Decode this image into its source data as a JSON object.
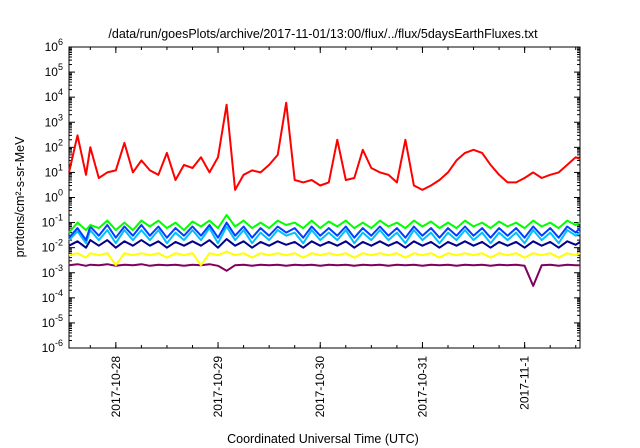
{
  "chart_data": {
    "type": "line",
    "title": "/data/run/goesPlots/archive/2017-11-01/13:00/flux/../flux/5daysEarthFluxes.txt",
    "xlabel": "Coordinated Universal Time (UTC)",
    "ylabel": "protons/cm²-s-sr-MeV",
    "yscale": "log",
    "ylim": [
      1e-06,
      1000000.0
    ],
    "xlim": [
      "2017-10-27 13:00",
      "2017-11-01 13:00"
    ],
    "xticks": [
      "2017-10-28",
      "2017-10-29",
      "2017-10-30",
      "2017-10-31",
      "2017-11-1"
    ],
    "yticks": [
      {
        "base": "10",
        "exp": "6"
      },
      {
        "base": "10",
        "exp": "5"
      },
      {
        "base": "10",
        "exp": "4"
      },
      {
        "base": "10",
        "exp": "3"
      },
      {
        "base": "10",
        "exp": "2"
      },
      {
        "base": "10",
        "exp": "1"
      },
      {
        "base": "10",
        "exp": "0"
      },
      {
        "base": "10",
        "exp": "-1"
      },
      {
        "base": "10",
        "exp": "-2"
      },
      {
        "base": "10",
        "exp": "-3"
      },
      {
        "base": "10",
        "exp": "-4"
      },
      {
        "base": "10",
        "exp": "-5"
      },
      {
        "base": "10",
        "exp": "-6"
      }
    ],
    "grid": false,
    "legend": "none",
    "x_hours": [
      0,
      2,
      4,
      5,
      7,
      9,
      11,
      13,
      15,
      17,
      19,
      21,
      23,
      25,
      27,
      29,
      31,
      33,
      35,
      37,
      39,
      41,
      43,
      45,
      47,
      49,
      51,
      53,
      55,
      57,
      59,
      61,
      63,
      65,
      67,
      69,
      71,
      73,
      75,
      77,
      79,
      81,
      83,
      85,
      87,
      89,
      91,
      93,
      95,
      97,
      99,
      101,
      103,
      105,
      107,
      109,
      111,
      113,
      115,
      117,
      119,
      120
    ],
    "series": [
      {
        "color": "#ff0000",
        "values": [
          10,
          300,
          8,
          100,
          6,
          10,
          12,
          150,
          10,
          30,
          12,
          8,
          60,
          5,
          20,
          15,
          40,
          10,
          40,
          5000,
          2,
          8,
          12,
          10,
          20,
          50,
          6000,
          5,
          4,
          5,
          3,
          4,
          200,
          5,
          6,
          80,
          15,
          10,
          8,
          4,
          200,
          3,
          2,
          3,
          5,
          10,
          30,
          60,
          80,
          60,
          20,
          8,
          4,
          4,
          6,
          10,
          6,
          8,
          10,
          20,
          40,
          35
        ]
      },
      {
        "color": "#00ff00",
        "values": [
          0.04,
          0.1,
          0.05,
          0.08,
          0.06,
          0.12,
          0.05,
          0.1,
          0.05,
          0.12,
          0.07,
          0.12,
          0.06,
          0.1,
          0.05,
          0.11,
          0.07,
          0.12,
          0.06,
          0.2,
          0.07,
          0.12,
          0.06,
          0.1,
          0.06,
          0.12,
          0.08,
          0.1,
          0.06,
          0.12,
          0.06,
          0.11,
          0.07,
          0.12,
          0.06,
          0.1,
          0.06,
          0.12,
          0.07,
          0.1,
          0.06,
          0.12,
          0.07,
          0.11,
          0.06,
          0.1,
          0.06,
          0.12,
          0.07,
          0.1,
          0.06,
          0.11,
          0.07,
          0.1,
          0.06,
          0.12,
          0.07,
          0.1,
          0.06,
          0.12,
          0.08,
          0.1
        ]
      },
      {
        "color": "#00bfff",
        "values": [
          0.02,
          0.045,
          0.015,
          0.05,
          0.02,
          0.05,
          0.015,
          0.05,
          0.02,
          0.05,
          0.02,
          0.05,
          0.015,
          0.04,
          0.02,
          0.05,
          0.02,
          0.06,
          0.015,
          0.07,
          0.02,
          0.05,
          0.015,
          0.04,
          0.02,
          0.05,
          0.03,
          0.04,
          0.015,
          0.05,
          0.02,
          0.04,
          0.02,
          0.05,
          0.015,
          0.04,
          0.02,
          0.05,
          0.02,
          0.04,
          0.015,
          0.05,
          0.02,
          0.04,
          0.015,
          0.04,
          0.02,
          0.05,
          0.02,
          0.04,
          0.015,
          0.04,
          0.02,
          0.04,
          0.015,
          0.05,
          0.02,
          0.04,
          0.015,
          0.05,
          0.03,
          0.04
        ]
      },
      {
        "color": "#0040ff",
        "values": [
          0.025,
          0.06,
          0.02,
          0.07,
          0.03,
          0.08,
          0.025,
          0.07,
          0.03,
          0.08,
          0.03,
          0.07,
          0.025,
          0.06,
          0.03,
          0.07,
          0.03,
          0.08,
          0.025,
          0.1,
          0.03,
          0.07,
          0.025,
          0.06,
          0.03,
          0.07,
          0.04,
          0.06,
          0.025,
          0.07,
          0.03,
          0.06,
          0.03,
          0.07,
          0.025,
          0.06,
          0.03,
          0.07,
          0.03,
          0.06,
          0.025,
          0.07,
          0.03,
          0.06,
          0.025,
          0.06,
          0.03,
          0.07,
          0.03,
          0.06,
          0.025,
          0.06,
          0.03,
          0.06,
          0.025,
          0.07,
          0.03,
          0.06,
          0.025,
          0.07,
          0.04,
          0.06
        ]
      },
      {
        "color": "#00008b",
        "values": [
          0.012,
          0.018,
          0.01,
          0.02,
          0.012,
          0.02,
          0.01,
          0.018,
          0.012,
          0.02,
          0.012,
          0.018,
          0.01,
          0.017,
          0.012,
          0.018,
          0.012,
          0.02,
          0.01,
          0.022,
          0.012,
          0.018,
          0.01,
          0.017,
          0.012,
          0.018,
          0.013,
          0.017,
          0.01,
          0.018,
          0.012,
          0.017,
          0.012,
          0.018,
          0.01,
          0.017,
          0.012,
          0.018,
          0.012,
          0.017,
          0.01,
          0.018,
          0.012,
          0.017,
          0.01,
          0.017,
          0.012,
          0.018,
          0.012,
          0.017,
          0.01,
          0.017,
          0.012,
          0.017,
          0.01,
          0.018,
          0.012,
          0.017,
          0.01,
          0.018,
          0.013,
          0.017
        ]
      },
      {
        "color": "#ffff00",
        "values": [
          0.005,
          0.006,
          0.004,
          0.006,
          0.005,
          0.006,
          0.002,
          0.006,
          0.005,
          0.006,
          0.005,
          0.006,
          0.004,
          0.006,
          0.005,
          0.006,
          0.002,
          0.006,
          0.005,
          0.007,
          0.005,
          0.006,
          0.004,
          0.006,
          0.005,
          0.006,
          0.005,
          0.006,
          0.004,
          0.006,
          0.005,
          0.006,
          0.005,
          0.006,
          0.004,
          0.006,
          0.005,
          0.006,
          0.005,
          0.006,
          0.004,
          0.006,
          0.005,
          0.006,
          0.004,
          0.006,
          0.005,
          0.006,
          0.005,
          0.006,
          0.004,
          0.006,
          0.005,
          0.006,
          0.004,
          0.006,
          0.005,
          0.006,
          0.004,
          0.006,
          0.005,
          0.006
        ]
      },
      {
        "color": "#800060",
        "values": [
          0.002,
          0.0022,
          0.0019,
          0.0021,
          0.002,
          0.0022,
          0.0019,
          0.0021,
          0.002,
          0.0022,
          0.0019,
          0.0021,
          0.002,
          0.0021,
          0.0019,
          0.0021,
          0.002,
          0.0022,
          0.0019,
          0.0012,
          0.002,
          0.0021,
          0.0019,
          0.0021,
          0.002,
          0.0021,
          0.0019,
          0.0021,
          0.002,
          0.0021,
          0.0019,
          0.0021,
          0.002,
          0.0021,
          0.0019,
          0.0021,
          0.002,
          0.0021,
          0.0019,
          0.0021,
          0.002,
          0.0021,
          0.0019,
          0.0021,
          0.002,
          0.0021,
          0.0019,
          0.0021,
          0.002,
          0.0021,
          0.0019,
          0.0021,
          0.002,
          0.0021,
          0.0019,
          0.0003,
          0.002,
          0.0021,
          0.0019,
          0.0021,
          0.002,
          0.002
        ]
      }
    ]
  }
}
